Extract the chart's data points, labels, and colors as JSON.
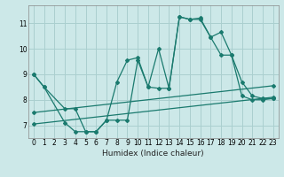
{
  "xlabel": "Humidex (Indice chaleur)",
  "bg_color": "#cce8e8",
  "line_color": "#1a7a6e",
  "grid_color": "#aacfcf",
  "xlim": [
    -0.5,
    23.5
  ],
  "ylim": [
    6.5,
    11.7
  ],
  "yticks": [
    7,
    8,
    9,
    10,
    11
  ],
  "xticks": [
    0,
    1,
    2,
    3,
    4,
    5,
    6,
    7,
    8,
    9,
    10,
    11,
    12,
    13,
    14,
    15,
    16,
    17,
    18,
    19,
    20,
    21,
    22,
    23
  ],
  "series": [
    {
      "x": [
        0,
        1,
        3,
        4,
        5,
        6,
        7,
        8,
        9,
        10,
        11,
        12,
        13,
        14,
        15,
        16,
        17,
        18,
        19,
        20,
        21,
        22,
        23
      ],
      "y": [
        9.0,
        8.5,
        7.1,
        6.75,
        6.75,
        6.75,
        7.2,
        8.7,
        9.55,
        9.65,
        8.5,
        10.0,
        8.45,
        11.25,
        11.15,
        11.2,
        10.45,
        10.65,
        9.75,
        8.7,
        8.15,
        8.05,
        8.05
      ]
    },
    {
      "x": [
        0,
        1,
        3,
        4,
        5,
        6,
        7,
        8,
        9,
        10,
        11,
        12,
        13,
        14,
        15,
        16,
        17,
        18,
        19,
        20,
        21,
        22,
        23
      ],
      "y": [
        9.0,
        8.5,
        7.65,
        7.65,
        6.75,
        6.75,
        7.2,
        7.2,
        7.2,
        9.55,
        8.5,
        8.45,
        8.45,
        11.25,
        11.15,
        11.15,
        10.45,
        9.75,
        9.75,
        8.15,
        8.0,
        8.0,
        8.05
      ]
    },
    {
      "x": [
        0,
        23
      ],
      "y": [
        7.05,
        8.1
      ]
    },
    {
      "x": [
        0,
        23
      ],
      "y": [
        7.5,
        8.55
      ]
    }
  ]
}
